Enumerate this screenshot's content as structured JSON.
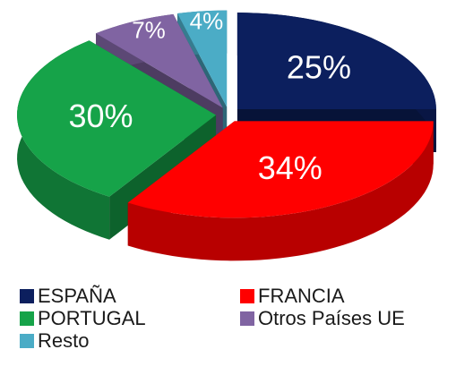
{
  "chart_data": {
    "type": "pie",
    "categories": [
      "ESPAÑA",
      "FRANCIA",
      "PORTUGAL",
      "Otros Países UE",
      "Resto"
    ],
    "values": [
      25,
      34,
      30,
      7,
      4
    ],
    "value_labels": [
      "25%",
      "34%",
      "30%",
      "7%",
      "4%"
    ],
    "colors": [
      "#0c1f5e",
      "#ff0000",
      "#16a349",
      "#8064a2",
      "#4bacc6"
    ],
    "legend": "bottom"
  }
}
